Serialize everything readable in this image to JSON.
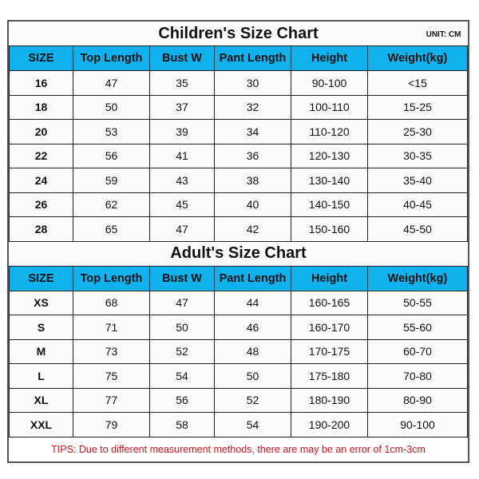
{
  "children": {
    "title": "Children's Size Chart",
    "unit": "UNIT: CM",
    "headers": [
      "SIZE",
      "Top Length",
      "Bust W",
      "Pant Length",
      "Height",
      "Weight(kg)"
    ],
    "rows": [
      [
        "16",
        "47",
        "35",
        "30",
        "90-100",
        "<15"
      ],
      [
        "18",
        "50",
        "37",
        "32",
        "100-110",
        "15-25"
      ],
      [
        "20",
        "53",
        "39",
        "34",
        "110-120",
        "25-30"
      ],
      [
        "22",
        "56",
        "41",
        "36",
        "120-130",
        "30-35"
      ],
      [
        "24",
        "59",
        "43",
        "38",
        "130-140",
        "35-40"
      ],
      [
        "26",
        "62",
        "45",
        "40",
        "140-150",
        "40-45"
      ],
      [
        "28",
        "65",
        "47",
        "42",
        "150-160",
        "45-50"
      ]
    ]
  },
  "adult": {
    "title": "Adult's Size Chart",
    "headers": [
      "SIZE",
      "Top Length",
      "Bust W",
      "Pant Length",
      "Height",
      "Weight(kg)"
    ],
    "rows": [
      [
        "XS",
        "68",
        "47",
        "44",
        "160-165",
        "50-55"
      ],
      [
        "S",
        "71",
        "50",
        "46",
        "160-170",
        "55-60"
      ],
      [
        "M",
        "73",
        "52",
        "48",
        "170-175",
        "60-70"
      ],
      [
        "L",
        "75",
        "54",
        "50",
        "175-180",
        "70-80"
      ],
      [
        "XL",
        "77",
        "56",
        "52",
        "180-190",
        "80-90"
      ],
      [
        "XXL",
        "79",
        "58",
        "54",
        "190-200",
        "90-100"
      ]
    ]
  },
  "tips": "TIPS: Due to different measurement methods, there are may be an error of 1cm-3cm",
  "colors": {
    "header_bg": "#0fb2ec",
    "tips_text": "#e0101a"
  }
}
